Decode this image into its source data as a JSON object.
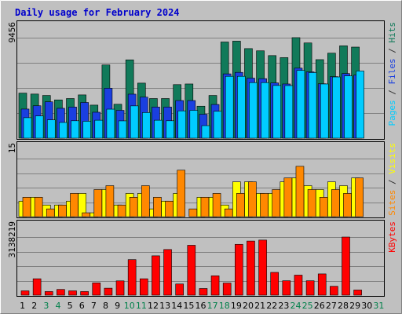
{
  "chart_data": {
    "type": "bar",
    "title": "Daily usage for February 2024",
    "days": [
      "1",
      "2",
      "3",
      "4",
      "5",
      "6",
      "7",
      "8",
      "9",
      "10",
      "11",
      "12",
      "13",
      "14",
      "15",
      "16",
      "17",
      "18",
      "19",
      "20",
      "21",
      "22",
      "23",
      "24",
      "25",
      "26",
      "27",
      "28",
      "29",
      "30",
      "31"
    ],
    "weekend_days": [
      "3",
      "4",
      "10",
      "11",
      "17",
      "18",
      "24",
      "25",
      "31"
    ],
    "panels": [
      {
        "id": "pages-files-hits",
        "max_label": "9456",
        "ymax": 9456,
        "side_labels": [
          {
            "text": "Pages",
            "color": "#00ccff"
          },
          {
            "text": " / ",
            "color": "#333333"
          },
          {
            "text": "Files",
            "color": "#1a3fe0"
          },
          {
            "text": " / ",
            "color": "#333333"
          },
          {
            "text": "Hits",
            "color": "#117a5a"
          }
        ],
        "series": [
          {
            "name": "Hits",
            "color": "#117a5a",
            "values": [
              4240,
              4150,
              4020,
              3600,
              3730,
              4070,
              3110,
              6890,
              3190,
              7370,
              5180,
              3730,
              3730,
              5040,
              5100,
              3010,
              4020,
              9050,
              9130,
              8430,
              8220,
              7770,
              7580,
              9460,
              8960,
              7390,
              8000,
              8690,
              8570,
              0,
              0
            ]
          },
          {
            "name": "Files",
            "color": "#1a3fe0",
            "values": [
              2740,
              3050,
              3420,
              2810,
              2930,
              3360,
              2440,
              4700,
              2620,
              4140,
              3860,
              2930,
              2930,
              3540,
              3540,
              2250,
              3170,
              6050,
              6190,
              5650,
              5600,
              5200,
              5100,
              6590,
              6240,
              5120,
              5790,
              6080,
              5940,
              0,
              0
            ]
          },
          {
            "name": "Pages",
            "color": "#00ccff",
            "values": [
              1930,
              2090,
              1720,
              1480,
              1640,
              1590,
              1690,
              2730,
              1630,
              3040,
              2410,
              1690,
              1640,
              2570,
              2620,
              1180,
              2530,
              5820,
              5820,
              5230,
              5230,
              4960,
              4950,
              6380,
              6170,
              5100,
              5760,
              5860,
              6320,
              0,
              0
            ]
          }
        ]
      },
      {
        "id": "sites-visits",
        "max_label": "15",
        "ymax": 15,
        "side_labels": [
          {
            "text": "Sites",
            "color": "#ff8800"
          },
          {
            "text": " / ",
            "color": "#333333"
          },
          {
            "text": "Visits",
            "color": "#ffff00"
          }
        ],
        "series": [
          {
            "name": "Visits",
            "color": "#ffff00",
            "values": [
              4,
              5,
              3,
              3,
              4,
              6,
              1,
              7,
              3,
              6,
              6,
              2,
              4,
              6,
              0,
              5,
              5,
              3,
              9,
              9,
              6,
              6,
              9,
              10,
              8,
              7,
              9,
              8,
              10,
              0,
              0
            ]
          },
          {
            "name": "Sites",
            "color": "#ff8800",
            "values": [
              5,
              5,
              2,
              3,
              6,
              1,
              7,
              8,
              3,
              5,
              8,
              5,
              4,
              12,
              2,
              5,
              6,
              2,
              6,
              9,
              6,
              7,
              10,
              13,
              7,
              5,
              7,
              6,
              10,
              0,
              0
            ]
          }
        ]
      },
      {
        "id": "kbytes",
        "max_label": "3138219",
        "ymax": 3138219,
        "side_labels": [
          {
            "text": "KBytes",
            "color": "#ff0000"
          }
        ],
        "series": [
          {
            "name": "KBytes",
            "color": "#ff0000",
            "values": [
              234000,
              886000,
              196000,
              310000,
              234000,
              196000,
              663000,
              377000,
              772000,
              1921000,
              886000,
              2125000,
              2466000,
              604000,
              2694000,
              360000,
              1045000,
              655000,
              2745000,
              2922000,
              2975000,
              1231000,
              778000,
              1083000,
              778000,
              1148000,
              479000,
              3138219,
              279000,
              0,
              0
            ]
          }
        ]
      }
    ]
  }
}
